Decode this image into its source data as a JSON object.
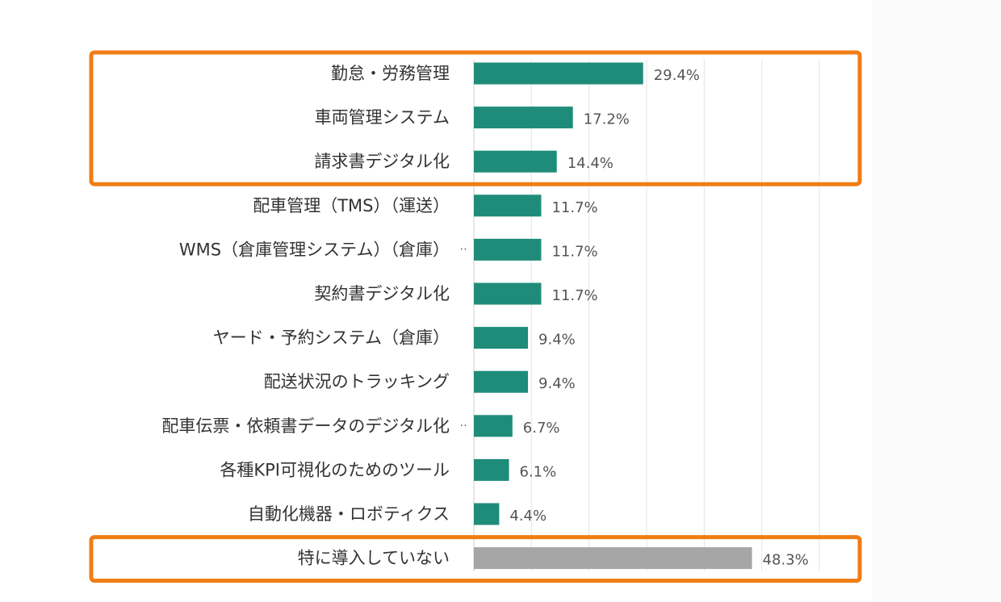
{
  "chart_data": {
    "type": "bar",
    "orientation": "horizontal",
    "categories": [
      "勤怠・労務管理",
      "車両管理システム",
      "請求書デジタル化",
      "配車管理（TMS）（運送）",
      "WMS（倉庫管理システム）（倉庫）",
      "契約書デジタル化",
      "ヤード・予約システム（倉庫）",
      "配送状況のトラッキング",
      "配車伝票・依頼書データのデジタル化",
      "各種KPI可視化のためのツール",
      "自動化機器・ロボティクス",
      "特に導入していない"
    ],
    "values": [
      29.4,
      17.2,
      14.4,
      11.7,
      11.7,
      11.7,
      9.4,
      9.4,
      6.7,
      6.1,
      4.4,
      48.3
    ],
    "value_labels": [
      "29.4%",
      "17.2%",
      "14.4%",
      "11.7%",
      "11.7%",
      "11.7%",
      "9.4%",
      "9.4%",
      "6.7%",
      "6.1%",
      "4.4%",
      "48.3%"
    ],
    "truncated_suffix": "‥",
    "truncated_categories": [
      4,
      8
    ],
    "xlim": [
      0,
      60
    ],
    "grid": true,
    "bar_colors": [
      "#1f8c7a",
      "#1f8c7a",
      "#1f8c7a",
      "#1f8c7a",
      "#1f8c7a",
      "#1f8c7a",
      "#1f8c7a",
      "#1f8c7a",
      "#1f8c7a",
      "#1f8c7a",
      "#1f8c7a",
      "#a6a6a6"
    ],
    "highlight_groups": [
      [
        0,
        2
      ],
      [
        11,
        11
      ]
    ],
    "highlight_color": "#f07d14"
  }
}
